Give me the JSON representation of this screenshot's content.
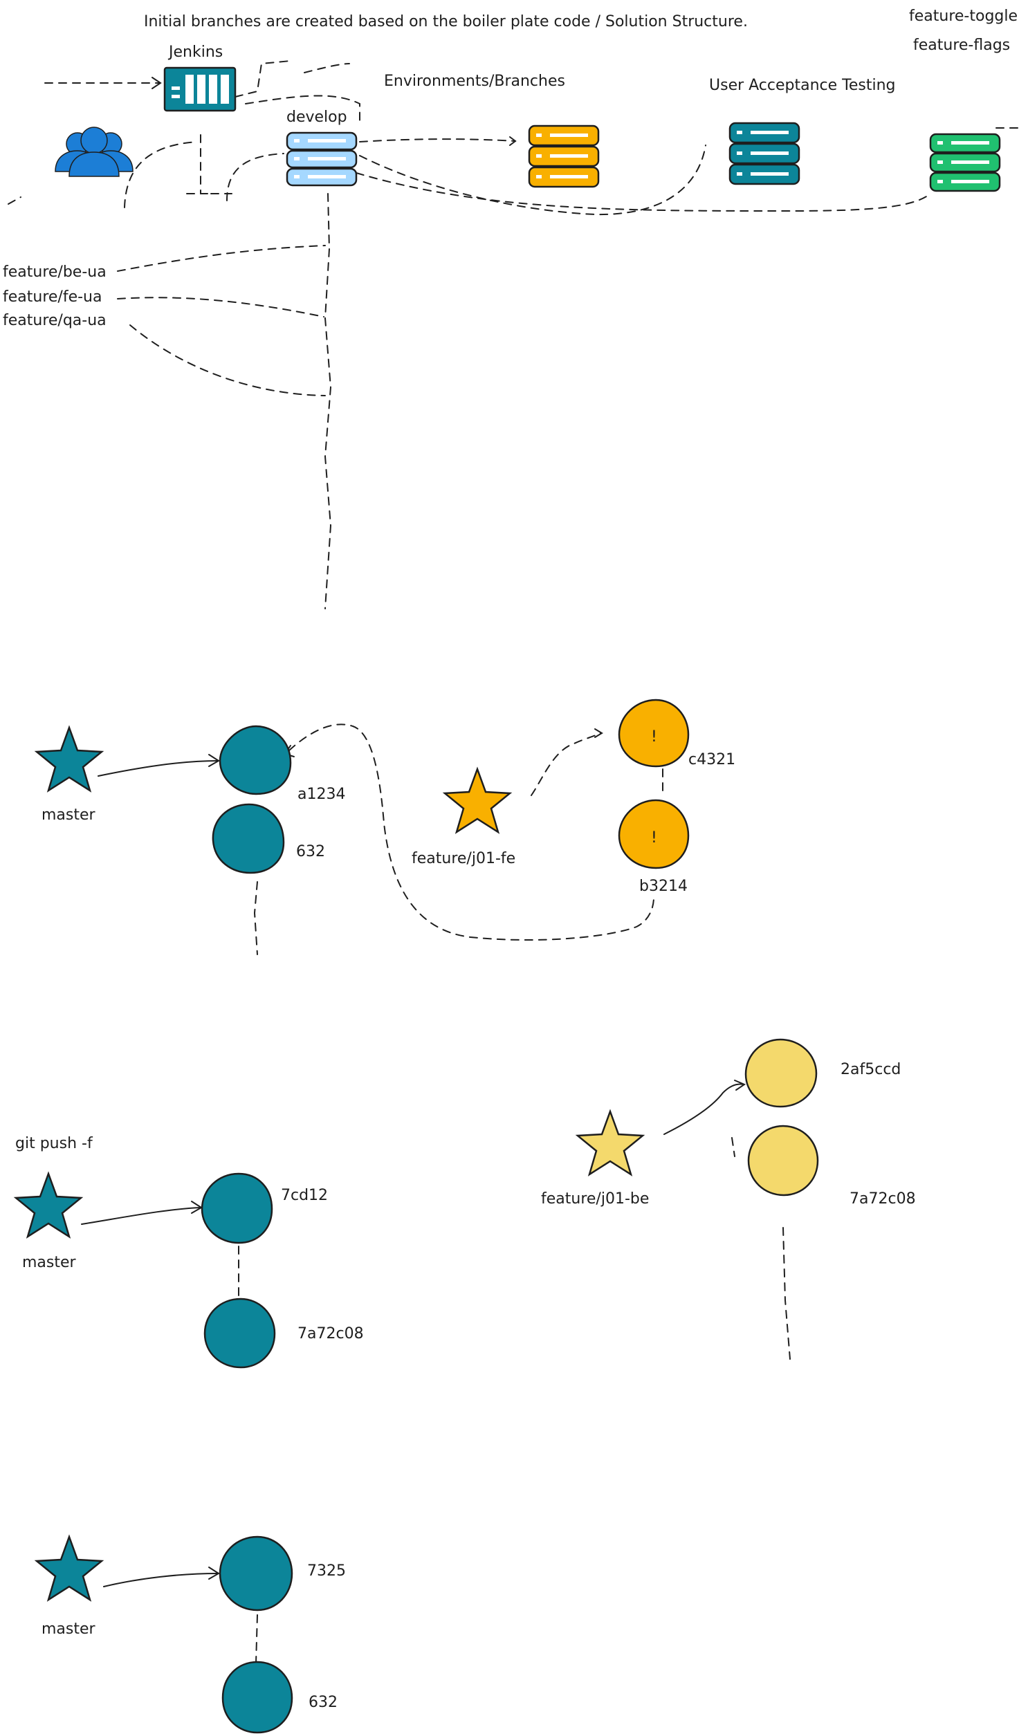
{
  "colors": {
    "teal": "#0c8599",
    "orange": "#f9b000",
    "light_yellow": "#f4d96c",
    "green": "#20c070",
    "light_blue": "#a5d8ff",
    "person_blue": "#1c7ed6",
    "ink": "#1e1e1e"
  },
  "icons": [
    "users-icon",
    "jenkins-server-icon",
    "server-stack-icon",
    "star-icon",
    "commit-node"
  ],
  "header": {
    "note": "Initial branches are created based on the boiler plate code / Solution Structure.",
    "toggle": "feature-toggle",
    "flags": "feature-flags"
  },
  "pipeline": {
    "jenkins": "Jenkins",
    "develop": "develop",
    "environments": "Environments/Branches",
    "uat": "User Acceptance Testing",
    "feature_branches": [
      "feature/be-ua",
      "feature/fe-ua",
      "feature/qa-ua"
    ]
  },
  "section1": {
    "master": "master",
    "commits": [
      "a1234",
      "632"
    ],
    "feature": "feature/j01-fe",
    "feature_commits": [
      "c4321",
      "b3214"
    ],
    "conflict_mark": "!"
  },
  "section2": {
    "command": "git push -f",
    "master": "master",
    "commits": [
      "7cd12",
      "7a72c08"
    ],
    "feature": "feature/j01-be",
    "feature_commits": [
      "2af5ccd",
      "7a72c08"
    ]
  },
  "section3": {
    "master": "master",
    "commits": [
      "7325",
      "632"
    ]
  }
}
